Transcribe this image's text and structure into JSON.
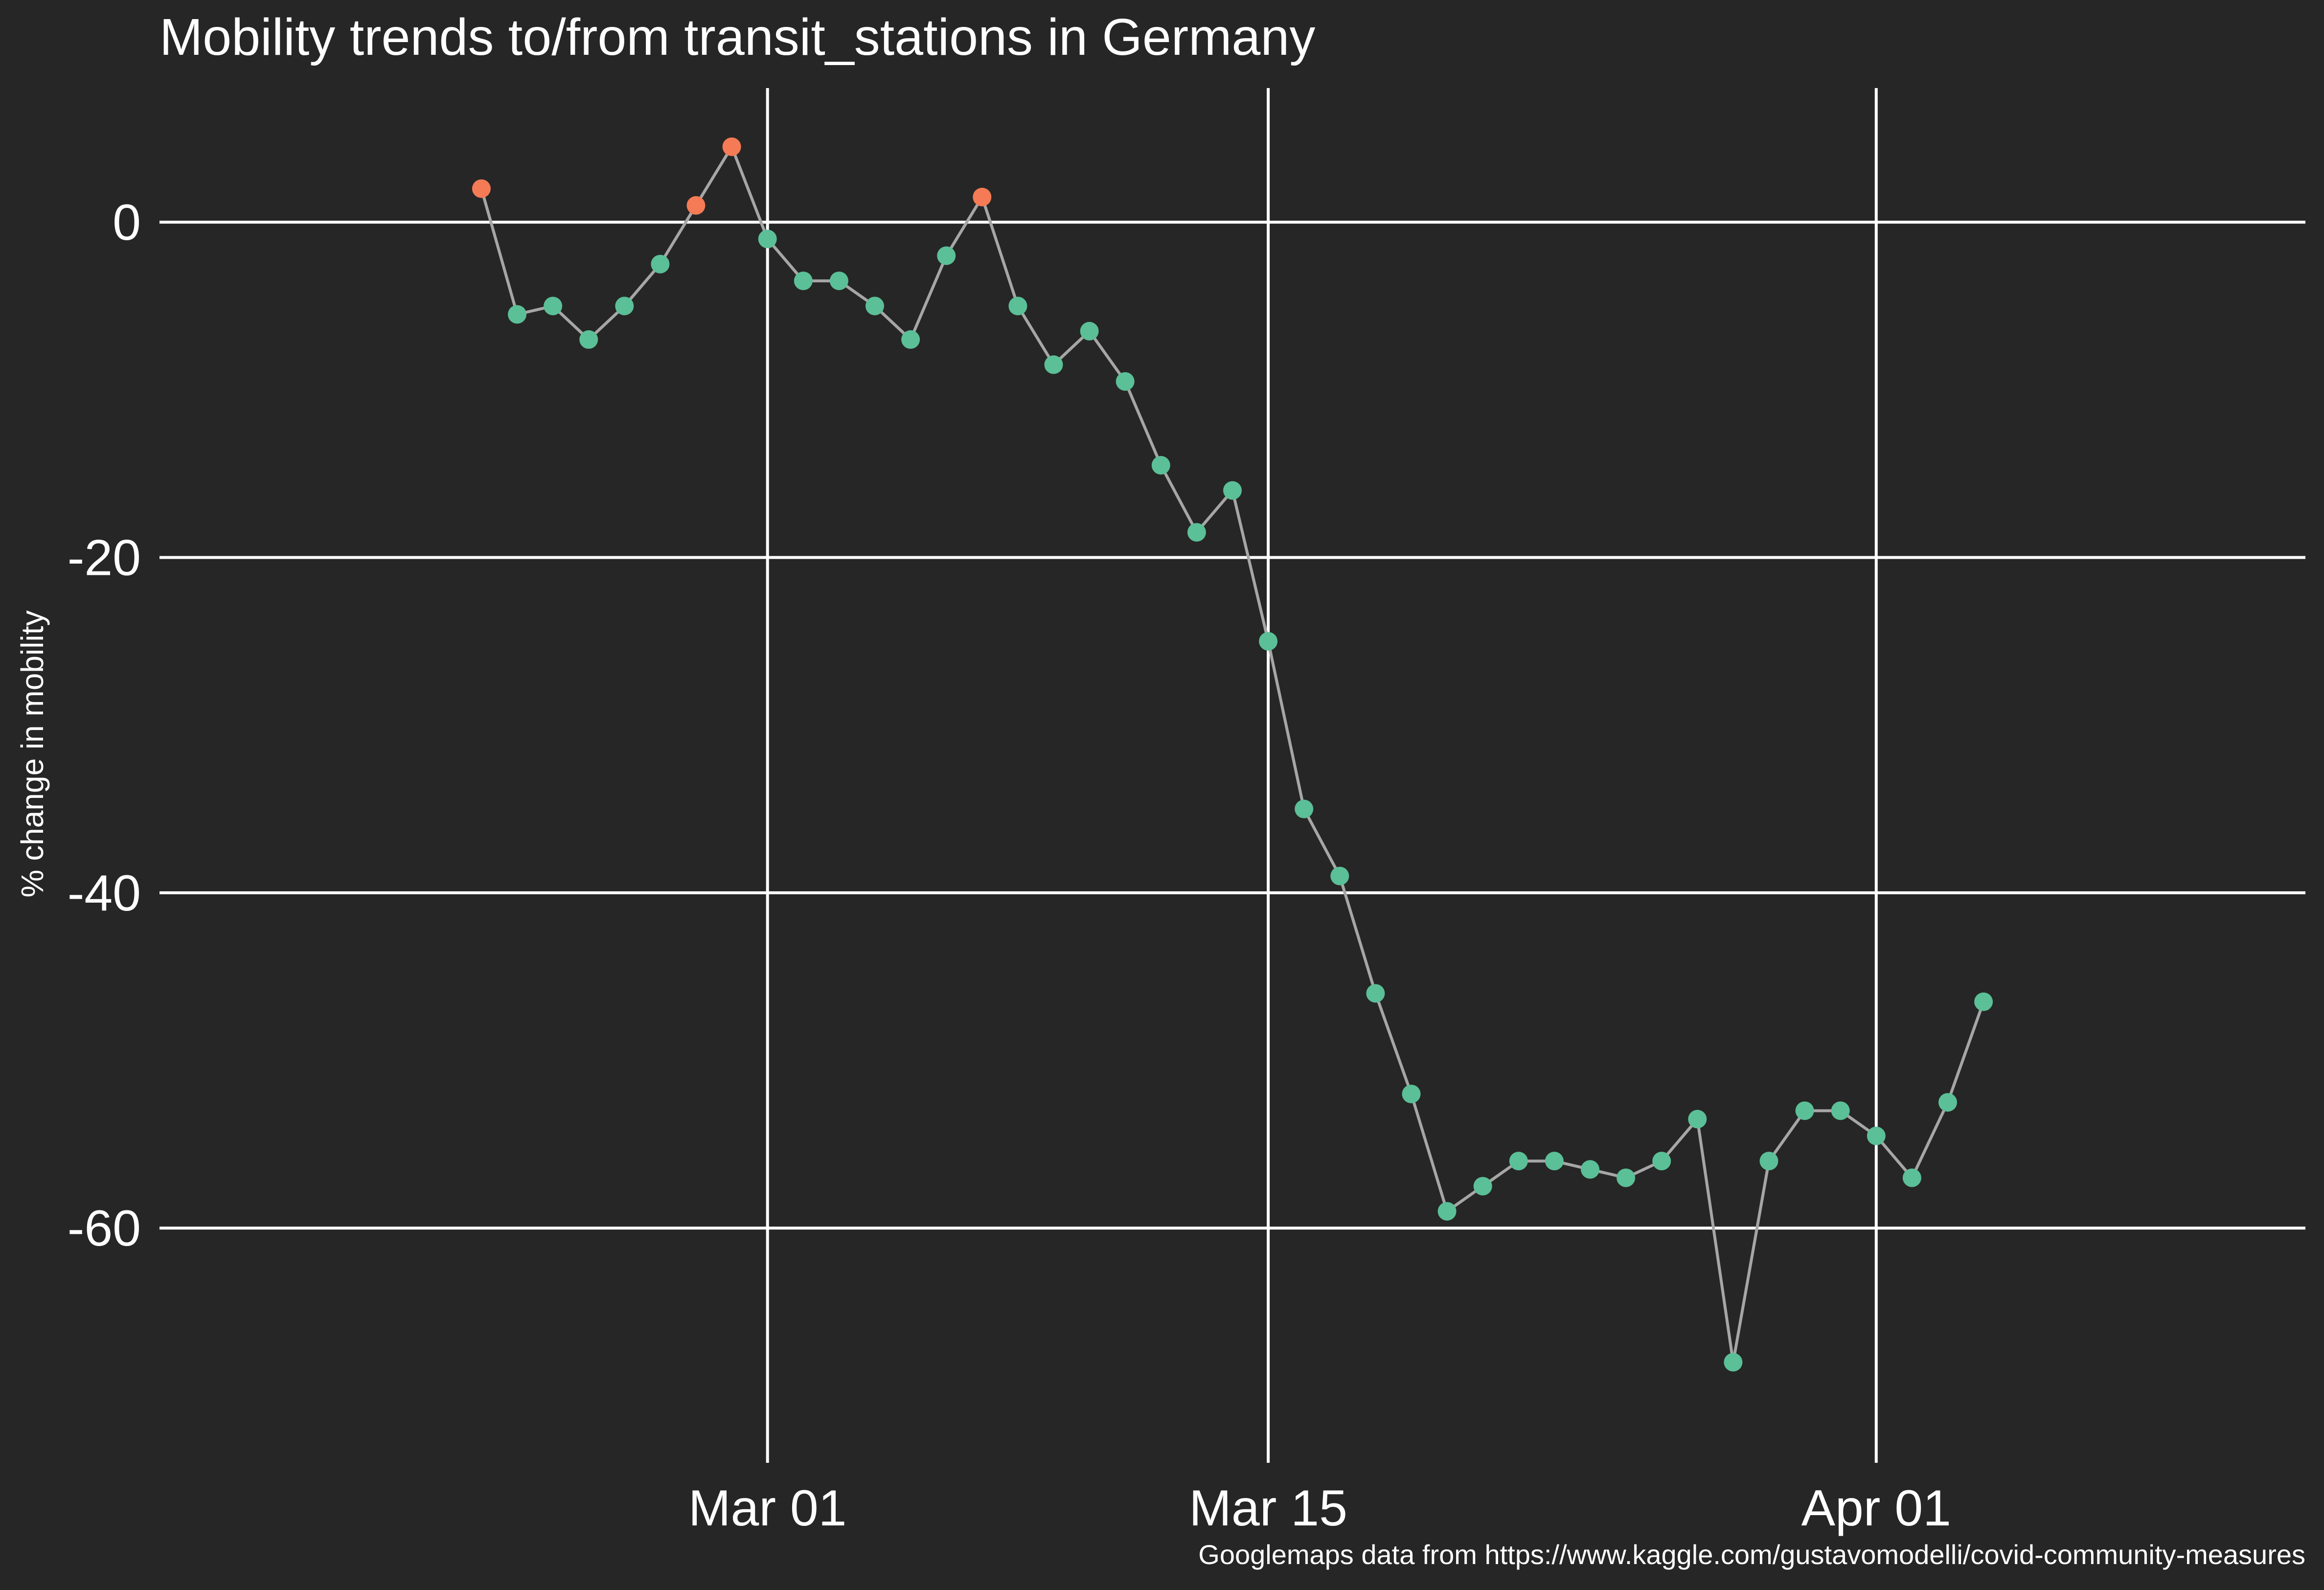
{
  "chart_data": {
    "type": "scatter",
    "title": "Mobility trends to/from transit_stations in Germany",
    "xlabel": "",
    "ylabel": "% change in mobility",
    "caption": "Googlemaps data from https://www.kaggle.com/gustavomodelli/covid-community-measures",
    "x_ticks": [
      {
        "label": "Mar 01",
        "date": "2020-03-01"
      },
      {
        "label": "Mar 15",
        "date": "2020-03-15"
      },
      {
        "label": "Apr 01",
        "date": "2020-04-01"
      }
    ],
    "y_ticks": [
      0,
      -20,
      -40,
      -60
    ],
    "xlim": [
      "2020-02-13",
      "2020-04-13"
    ],
    "ylim": [
      -74,
      8
    ],
    "grid": true,
    "legend": "none",
    "colors": {
      "background": "#262626",
      "grid": "#ffffff",
      "line": "#a6a6a6",
      "point_negative": "#5bbf97",
      "point_positive": "#f47b55"
    },
    "points": [
      {
        "date": "2020-02-22",
        "value": 2
      },
      {
        "date": "2020-02-23",
        "value": -5.5
      },
      {
        "date": "2020-02-24",
        "value": -5
      },
      {
        "date": "2020-02-25",
        "value": -7
      },
      {
        "date": "2020-02-26",
        "value": -5
      },
      {
        "date": "2020-02-27",
        "value": -2.5
      },
      {
        "date": "2020-02-28",
        "value": 1
      },
      {
        "date": "2020-02-29",
        "value": 4.5
      },
      {
        "date": "2020-03-01",
        "value": -1
      },
      {
        "date": "2020-03-02",
        "value": -3.5
      },
      {
        "date": "2020-03-03",
        "value": -3.5
      },
      {
        "date": "2020-03-04",
        "value": -5
      },
      {
        "date": "2020-03-05",
        "value": -7
      },
      {
        "date": "2020-03-06",
        "value": -2
      },
      {
        "date": "2020-03-07",
        "value": 1.5
      },
      {
        "date": "2020-03-08",
        "value": -5
      },
      {
        "date": "2020-03-09",
        "value": -8.5
      },
      {
        "date": "2020-03-10",
        "value": -6.5
      },
      {
        "date": "2020-03-11",
        "value": -9.5
      },
      {
        "date": "2020-03-12",
        "value": -14.5
      },
      {
        "date": "2020-03-13",
        "value": -18.5
      },
      {
        "date": "2020-03-14",
        "value": -16
      },
      {
        "date": "2020-03-15",
        "value": -25
      },
      {
        "date": "2020-03-16",
        "value": -35
      },
      {
        "date": "2020-03-17",
        "value": -39
      },
      {
        "date": "2020-03-18",
        "value": -46
      },
      {
        "date": "2020-03-19",
        "value": -52
      },
      {
        "date": "2020-03-20",
        "value": -59
      },
      {
        "date": "2020-03-21",
        "value": -57.5
      },
      {
        "date": "2020-03-22",
        "value": -56
      },
      {
        "date": "2020-03-23",
        "value": -56
      },
      {
        "date": "2020-03-24",
        "value": -56.5
      },
      {
        "date": "2020-03-25",
        "value": -57
      },
      {
        "date": "2020-03-26",
        "value": -56
      },
      {
        "date": "2020-03-27",
        "value": -53.5
      },
      {
        "date": "2020-03-28",
        "value": -68
      },
      {
        "date": "2020-03-29",
        "value": -56
      },
      {
        "date": "2020-03-30",
        "value": -53
      },
      {
        "date": "2020-03-31",
        "value": -53
      },
      {
        "date": "2020-04-01",
        "value": -54.5
      },
      {
        "date": "2020-04-02",
        "value": -57
      },
      {
        "date": "2020-04-03",
        "value": -52.5
      },
      {
        "date": "2020-04-04",
        "value": -46.5
      }
    ]
  }
}
